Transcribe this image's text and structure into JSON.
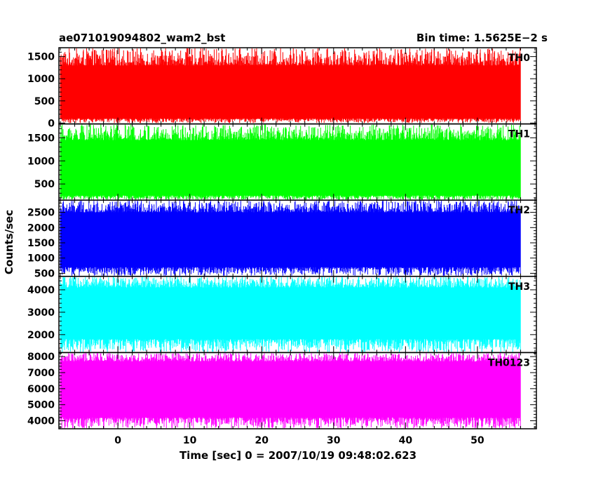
{
  "header": {
    "left_title": "ae071019094802_wam2_bst",
    "right_title": "Bin time: 1.5625E−2 s"
  },
  "axes": {
    "ylabel": "Counts/sec",
    "xlabel": "Time [sec] 0 = 2007/10/19 09:48:02.623"
  },
  "chart_data": {
    "type": "line",
    "x_range": [
      -8.2,
      58.2
    ],
    "data_x_range": [
      -8.0,
      56.0
    ],
    "x_ticks": [
      0,
      10,
      20,
      30,
      40,
      50
    ],
    "x_tick_labels": [
      "0",
      "10",
      "20",
      "30",
      "40",
      "50"
    ],
    "panels": [
      {
        "name": "TH0",
        "color": "#ff0000",
        "y_range": [
          -20,
          1700
        ],
        "y_ticks": [
          0,
          500,
          1000,
          1500
        ],
        "y_tick_labels": [
          "0",
          "500",
          "1000",
          "1500"
        ],
        "typical_min": 100,
        "typical_max": 1300,
        "extreme_min": 0,
        "extreme_max": 1700
      },
      {
        "name": "TH1",
        "color": "#00ff00",
        "y_range": [
          150,
          1800
        ],
        "y_ticks": [
          500,
          1000,
          1500
        ],
        "y_tick_labels": [
          "500",
          "1000",
          "1500"
        ],
        "typical_min": 250,
        "typical_max": 1450,
        "extreme_min": 150,
        "extreme_max": 1800
      },
      {
        "name": "TH2",
        "color": "#0000ff",
        "y_range": [
          400,
          2900
        ],
        "y_ticks": [
          500,
          1000,
          1500,
          2000,
          2500
        ],
        "y_tick_labels": [
          "500",
          "1000",
          "1500",
          "2000",
          "2500"
        ],
        "typical_min": 700,
        "typical_max": 2500,
        "extreme_min": 400,
        "extreme_max": 2900
      },
      {
        "name": "TH3",
        "color": "#00ffff",
        "y_range": [
          1200,
          4600
        ],
        "y_ticks": [
          2000,
          3000,
          4000
        ],
        "y_tick_labels": [
          "2000",
          "3000",
          "4000"
        ],
        "typical_min": 1800,
        "typical_max": 4100,
        "extreme_min": 1200,
        "extreme_max": 4600
      },
      {
        "name": "TH0123",
        "color": "#ff00ff",
        "y_range": [
          3500,
          8250
        ],
        "y_ticks": [
          4000,
          5000,
          6000,
          7000,
          8000
        ],
        "y_tick_labels": [
          "4000",
          "5000",
          "6000",
          "7000",
          "8000"
        ],
        "typical_min": 4200,
        "typical_max": 7700,
        "extreme_min": 3500,
        "extreme_max": 8250
      }
    ]
  }
}
